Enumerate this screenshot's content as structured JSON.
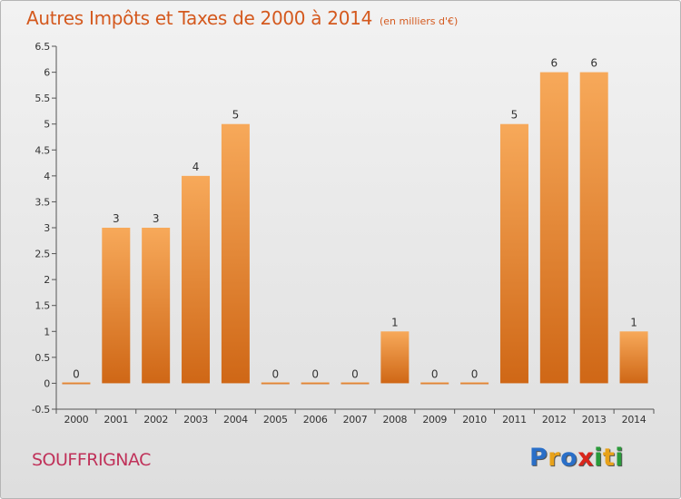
{
  "title": "Autres Impôts et Taxes de 2000 à 2014",
  "subtitle": "(en milliers d'€)",
  "commune": "SOUFFRIGNAC",
  "logo": {
    "letters": [
      "P",
      "r",
      "o",
      "x",
      "i",
      "t",
      "i"
    ],
    "colors": [
      "#2a6fc8",
      "#e8a21a",
      "#2a6fc8",
      "#d9261c",
      "#2a9a3a",
      "#e8a21a",
      "#2a9a3a"
    ]
  },
  "colors": {
    "title": "#d4591e",
    "commune": "#c0325a",
    "bar_light": "#f7a95a",
    "bar_dark": "#cf6716"
  },
  "chart_data": {
    "type": "bar",
    "categories": [
      "2000",
      "2001",
      "2002",
      "2003",
      "2004",
      "2005",
      "2006",
      "2007",
      "2008",
      "2009",
      "2010",
      "2011",
      "2012",
      "2013",
      "2014"
    ],
    "values": [
      0,
      3,
      3,
      4,
      5,
      0,
      0,
      0,
      1,
      0,
      0,
      5,
      6,
      6,
      1
    ],
    "data_labels": [
      "0",
      "3",
      "3",
      "4",
      "5",
      "0",
      "0",
      "0",
      "1",
      "0",
      "0",
      "5",
      "6",
      "6",
      "1"
    ],
    "y_ticks": [
      "-0.5",
      "0",
      "0.5",
      "1",
      "1.5",
      "2",
      "2.5",
      "3",
      "3.5",
      "4",
      "4.5",
      "5",
      "5.5",
      "6",
      "6.5"
    ],
    "ylim": [
      -0.5,
      6.5
    ],
    "grid": false,
    "legend": "none"
  }
}
